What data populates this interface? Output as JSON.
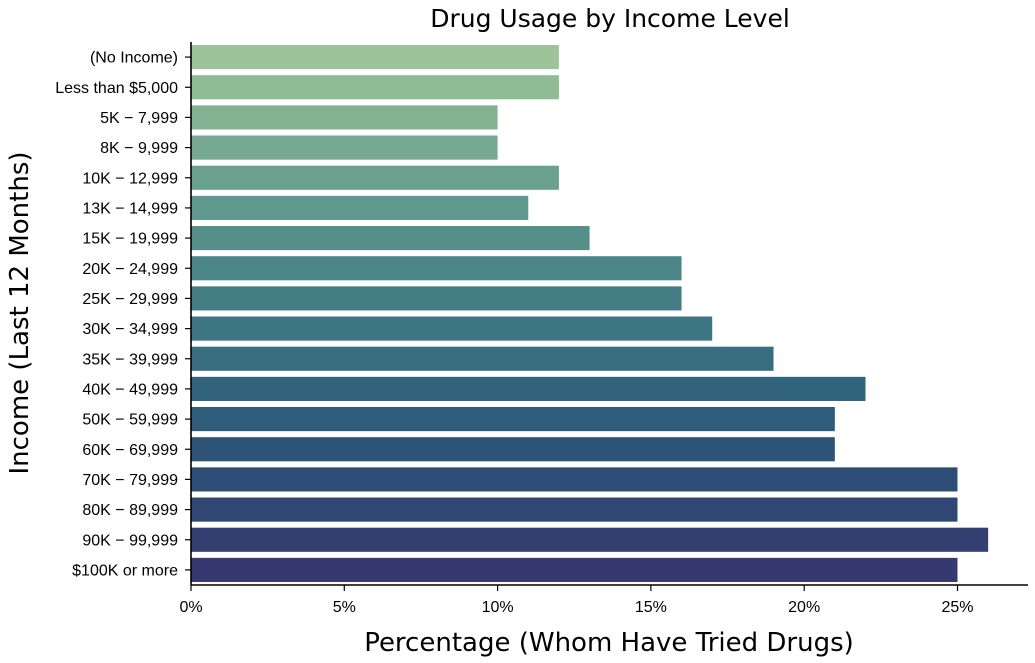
{
  "chart_data": {
    "type": "bar",
    "orientation": "horizontal",
    "title": "Drug Usage by Income Level",
    "xlabel": "Percentage (Whom Have Tried Drugs)",
    "ylabel": "Income (Last 12 Months)",
    "xlim": [
      0,
      27.3
    ],
    "xticks": [
      0,
      5,
      10,
      15,
      20,
      25
    ],
    "xtick_labels": [
      "0%",
      "5%",
      "10%",
      "15%",
      "20%",
      "25%"
    ],
    "grid": false,
    "categories": [
      "(No Income)",
      "Less than $5,000",
      "5K − 7,999",
      "8K − 9,999",
      "10K − 12,999",
      "13K − 14,999",
      "15K − 19,999",
      "20K − 24,999",
      "25K − 29,999",
      "30K − 34,999",
      "35K − 39,999",
      "40K − 49,999",
      "50K − 59,999",
      "60K − 69,999",
      "70K − 79,999",
      "80K − 89,999",
      "90K − 99,999",
      "$100K or more"
    ],
    "values": [
      12,
      12,
      10,
      10,
      12,
      11,
      13,
      16,
      16,
      17,
      19,
      22,
      21,
      21,
      25,
      25,
      26,
      25
    ],
    "colors": [
      "#9dc39b",
      "#8fbb95",
      "#83b292",
      "#77a990",
      "#6aa08e",
      "#5f988c",
      "#568f8a",
      "#4d8688",
      "#457d85",
      "#3e7582",
      "#376d7f",
      "#32647d",
      "#2f5c7a",
      "#2d5477",
      "#2e4d75",
      "#304673",
      "#333f71",
      "#35396f"
    ]
  }
}
